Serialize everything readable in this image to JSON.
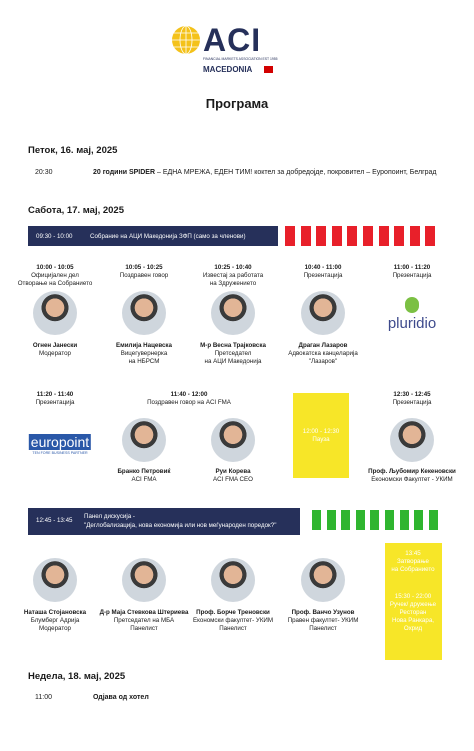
{
  "header": {
    "logo": "ACI",
    "tagline": "FINANCIAL MARKETS ASSOCIATION EST 1955",
    "country": "MACEDONIA",
    "title": "Програма"
  },
  "friday": {
    "date": "Петок, 16. мај, 2025",
    "time": "20:30",
    "event_bold": "20 години SPIDER",
    "event": "– ЕДНА МРЕЖА, ЕДЕН ТИМ! коктел за добредојде, покровител – Еуропоинт, Белград"
  },
  "saturday": {
    "date": "Сабота, 17. мај, 2025",
    "opening": {
      "time": "09:30 - 10:00",
      "title": "Собрание на АЦИ Македонија  ЗФП (само за членови)"
    },
    "row1": [
      {
        "time": "10:00 - 10:05",
        "topic": [
          "Официјален дел",
          "Отворање на Собранието"
        ],
        "name": "Огнен Јанески",
        "role": [
          "Модератор"
        ]
      },
      {
        "time": "10:05 - 10:25",
        "topic": [
          "Поздравен говор"
        ],
        "name": "Емилија Нацевска",
        "role": [
          "Вицегувернерка",
          "на НБРСМ"
        ]
      },
      {
        "time": "10:25 - 10:40",
        "topic": [
          "Известај за работата",
          "на Здружението"
        ],
        "name": "М-р Весна Трајковска",
        "role": [
          "Претседател",
          "на АЦИ Македонија"
        ]
      },
      {
        "time": "10:40 - 11:00",
        "topic": [
          "Презентација"
        ],
        "name": "Драган Лазаров",
        "role": [
          "Адвокатска канцеларија",
          "\"Лазаров\""
        ]
      },
      {
        "time": "11:00 - 11:20",
        "topic": [
          "Презентација"
        ],
        "logo": "pluridio"
      }
    ],
    "row2": [
      {
        "time": "11:20 - 11:40",
        "topic": [
          "Презентација"
        ],
        "logo": "europoint",
        "logo_tagline": "TEN FORE BUSINESS PARTNER"
      },
      {
        "time": "11:40 - 12:00",
        "topic": [
          "Поздравен говор на ACI FMA"
        ],
        "speakers": [
          {
            "name": "Бранко Петровиќ",
            "role": [
              "ACI FMA"
            ]
          },
          {
            "name": "Руи Корева",
            "role": [
              "ACI FMA CEO"
            ]
          }
        ]
      },
      {
        "time": "12:00 - 12:30",
        "topic": [
          "Пауза"
        ]
      },
      {
        "time": "12:30 - 12:45",
        "topic": [
          "Презентација"
        ],
        "name": "Проф. Љубомир Кекеновски",
        "role": [
          "Економски Факултет - УКИМ"
        ]
      }
    ],
    "panel": {
      "time": "12:45 - 13:45",
      "title": [
        "Панел дискусија -",
        "\"Дeглобализација, нова економија или нов меѓународен поредок?\""
      ],
      "panelists": [
        {
          "name": "Наташа Стојановска",
          "role": [
            "Блумберг Адрија",
            "Модератор"
          ]
        },
        {
          "name": "Д-р Маја Стевкова Штериева",
          "role": [
            "Претседател на МБА",
            "Панелист"
          ]
        },
        {
          "name": "Проф. Борче Треновски",
          "role": [
            "Економски факултет- УКИМ",
            "Панелист"
          ]
        },
        {
          "name": "Проф. Ванчо Узунов",
          "role": [
            "Правен факултет- УКИМ",
            "Панелист"
          ]
        }
      ]
    },
    "closing": {
      "time": "13:45",
      "title": [
        "Затворање",
        "на Собранието"
      ]
    },
    "lunch": {
      "time": "15:30 - 22:00",
      "title": [
        "Ручек/ дружење",
        "Ресторан",
        "Нова Ранкара,",
        "Охрид"
      ]
    }
  },
  "sunday": {
    "date": "Недела, 18. мај, 2025",
    "time": "11:00",
    "event": "Одјава од хотел"
  }
}
